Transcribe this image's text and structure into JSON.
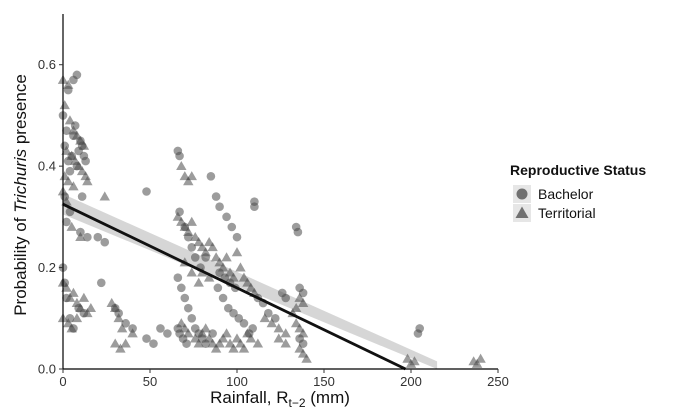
{
  "chart_data": {
    "type": "scatter",
    "xlabel_main": "Rainfall, R",
    "xlabel_sub": "t−2",
    "xlabel_unit": " (mm)",
    "ylabel_pre": "Probability of ",
    "ylabel_italic": "Trichuris",
    "ylabel_post": " presence",
    "xlim": [
      0,
      250
    ],
    "ylim": [
      0,
      0.7
    ],
    "x_ticks": [
      0,
      50,
      100,
      150,
      200,
      250
    ],
    "y_ticks": [
      0.0,
      0.2,
      0.4,
      0.6
    ],
    "y_tick_labels": [
      "0.0",
      "0.2",
      "0.4",
      "0.6"
    ],
    "grid": false,
    "legend": {
      "title": "Reproductive Status",
      "position": "right",
      "entries": [
        {
          "label": "Bachelor",
          "shape": "circle"
        },
        {
          "label": "Territorial",
          "shape": "triangle"
        }
      ]
    },
    "point_color": "#4a4a4a",
    "point_opacity": 0.55,
    "fit_color": "#111111",
    "band_color": "#c8c8c8",
    "fit_line": {
      "x": [
        0,
        215
      ],
      "y": [
        0.325,
        -0.03
      ]
    },
    "confidence_band": {
      "x": [
        0,
        215
      ],
      "lower": [
        0.305,
        -0.075
      ],
      "upper": [
        0.345,
        0.015
      ]
    },
    "series": [
      {
        "name": "Bachelor",
        "marker": "circle",
        "points": [
          [
            0,
            0.5
          ],
          [
            1,
            0.44
          ],
          [
            2,
            0.47
          ],
          [
            3,
            0.41
          ],
          [
            4,
            0.39
          ],
          [
            5,
            0.42
          ],
          [
            6,
            0.46
          ],
          [
            7,
            0.48
          ],
          [
            8,
            0.4
          ],
          [
            9,
            0.43
          ],
          [
            10,
            0.45
          ],
          [
            11,
            0.44
          ],
          [
            12,
            0.42
          ],
          [
            13,
            0.41
          ],
          [
            3,
            0.55
          ],
          [
            6,
            0.57
          ],
          [
            8,
            0.58
          ],
          [
            1,
            0.34
          ],
          [
            4,
            0.31
          ],
          [
            2,
            0.29
          ],
          [
            10,
            0.27
          ],
          [
            14,
            0.26
          ],
          [
            20,
            0.26
          ],
          [
            24,
            0.25
          ],
          [
            11,
            0.34
          ],
          [
            0,
            0.2
          ],
          [
            1,
            0.17
          ],
          [
            2,
            0.14
          ],
          [
            4,
            0.1
          ],
          [
            6,
            0.08
          ],
          [
            9,
            0.12
          ],
          [
            12,
            0.11
          ],
          [
            22,
            0.17
          ],
          [
            48,
            0.35
          ],
          [
            66,
            0.43
          ],
          [
            67,
            0.42
          ],
          [
            67,
            0.31
          ],
          [
            70,
            0.28
          ],
          [
            72,
            0.26
          ],
          [
            74,
            0.24
          ],
          [
            76,
            0.22
          ],
          [
            79,
            0.2
          ],
          [
            82,
            0.22
          ],
          [
            85,
            0.38
          ],
          [
            88,
            0.34
          ],
          [
            90,
            0.32
          ],
          [
            94,
            0.3
          ],
          [
            97,
            0.28
          ],
          [
            100,
            0.26
          ],
          [
            66,
            0.18
          ],
          [
            68,
            0.16
          ],
          [
            70,
            0.14
          ],
          [
            72,
            0.12
          ],
          [
            74,
            0.1
          ],
          [
            76,
            0.08
          ],
          [
            78,
            0.07
          ],
          [
            80,
            0.06
          ],
          [
            82,
            0.05
          ],
          [
            86,
            0.07
          ],
          [
            89,
            0.16
          ],
          [
            92,
            0.14
          ],
          [
            95,
            0.12
          ],
          [
            98,
            0.11
          ],
          [
            101,
            0.1
          ],
          [
            104,
            0.09
          ],
          [
            107,
            0.07
          ],
          [
            109,
            0.08
          ],
          [
            66,
            0.08
          ],
          [
            67,
            0.07
          ],
          [
            69,
            0.06
          ],
          [
            71,
            0.05
          ],
          [
            90,
            0.19
          ],
          [
            93,
            0.18
          ],
          [
            96,
            0.17
          ],
          [
            99,
            0.16
          ],
          [
            110,
            0.33
          ],
          [
            110,
            0.32
          ],
          [
            112,
            0.14
          ],
          [
            115,
            0.13
          ],
          [
            118,
            0.11
          ],
          [
            122,
            0.1
          ],
          [
            126,
            0.15
          ],
          [
            128,
            0.14
          ],
          [
            134,
            0.28
          ],
          [
            135,
            0.27
          ],
          [
            136,
            0.16
          ],
          [
            138,
            0.15
          ],
          [
            136,
            0.06
          ],
          [
            138,
            0.05
          ],
          [
            48,
            0.06
          ],
          [
            52,
            0.05
          ],
          [
            56,
            0.08
          ],
          [
            60,
            0.07
          ],
          [
            30,
            0.12
          ],
          [
            32,
            0.11
          ],
          [
            36,
            0.09
          ],
          [
            40,
            0.08
          ],
          [
            204,
            0.07
          ],
          [
            205,
            0.08
          ]
        ]
      },
      {
        "name": "Territorial",
        "marker": "triangle",
        "points": [
          [
            0,
            0.57
          ],
          [
            3,
            0.56
          ],
          [
            1,
            0.52
          ],
          [
            4,
            0.49
          ],
          [
            6,
            0.47
          ],
          [
            8,
            0.46
          ],
          [
            10,
            0.45
          ],
          [
            12,
            0.44
          ],
          [
            2,
            0.43
          ],
          [
            5,
            0.42
          ],
          [
            7,
            0.41
          ],
          [
            9,
            0.4
          ],
          [
            11,
            0.39
          ],
          [
            13,
            0.38
          ],
          [
            14,
            0.37
          ],
          [
            1,
            0.38
          ],
          [
            3,
            0.37
          ],
          [
            6,
            0.36
          ],
          [
            0,
            0.35
          ],
          [
            2,
            0.33
          ],
          [
            24,
            0.34
          ],
          [
            5,
            0.28
          ],
          [
            10,
            0.26
          ],
          [
            0,
            0.17
          ],
          [
            2,
            0.16
          ],
          [
            4,
            0.14
          ],
          [
            6,
            0.15
          ],
          [
            8,
            0.13
          ],
          [
            10,
            0.12
          ],
          [
            12,
            0.14
          ],
          [
            14,
            0.11
          ],
          [
            16,
            0.12
          ],
          [
            0,
            0.1
          ],
          [
            3,
            0.09
          ],
          [
            5,
            0.08
          ],
          [
            8,
            0.1
          ],
          [
            28,
            0.13
          ],
          [
            30,
            0.12
          ],
          [
            32,
            0.1
          ],
          [
            34,
            0.08
          ],
          [
            30,
            0.05
          ],
          [
            33,
            0.04
          ],
          [
            36,
            0.05
          ],
          [
            40,
            0.07
          ],
          [
            68,
            0.4
          ],
          [
            70,
            0.38
          ],
          [
            72,
            0.37
          ],
          [
            74,
            0.38
          ],
          [
            66,
            0.3
          ],
          [
            68,
            0.29
          ],
          [
            70,
            0.28
          ],
          [
            72,
            0.27
          ],
          [
            74,
            0.29
          ],
          [
            76,
            0.26
          ],
          [
            78,
            0.25
          ],
          [
            80,
            0.24
          ],
          [
            82,
            0.23
          ],
          [
            84,
            0.25
          ],
          [
            86,
            0.24
          ],
          [
            88,
            0.22
          ],
          [
            90,
            0.21
          ],
          [
            92,
            0.2
          ],
          [
            94,
            0.22
          ],
          [
            96,
            0.19
          ],
          [
            98,
            0.18
          ],
          [
            100,
            0.23
          ],
          [
            102,
            0.2
          ],
          [
            104,
            0.18
          ],
          [
            106,
            0.17
          ],
          [
            108,
            0.16
          ],
          [
            110,
            0.15
          ],
          [
            70,
            0.21
          ],
          [
            74,
            0.19
          ],
          [
            78,
            0.17
          ],
          [
            80,
            0.19
          ],
          [
            84,
            0.18
          ],
          [
            68,
            0.09
          ],
          [
            70,
            0.08
          ],
          [
            72,
            0.07
          ],
          [
            76,
            0.06
          ],
          [
            78,
            0.05
          ],
          [
            80,
            0.07
          ],
          [
            82,
            0.08
          ],
          [
            84,
            0.06
          ],
          [
            86,
            0.05
          ],
          [
            88,
            0.04
          ],
          [
            90,
            0.05
          ],
          [
            92,
            0.06
          ],
          [
            94,
            0.07
          ],
          [
            96,
            0.05
          ],
          [
            98,
            0.04
          ],
          [
            100,
            0.06
          ],
          [
            102,
            0.05
          ],
          [
            104,
            0.04
          ],
          [
            106,
            0.07
          ],
          [
            108,
            0.06
          ],
          [
            112,
            0.05
          ],
          [
            116,
            0.1
          ],
          [
            120,
            0.09
          ],
          [
            124,
            0.08
          ],
          [
            128,
            0.07
          ],
          [
            132,
            0.11
          ],
          [
            134,
            0.12
          ],
          [
            136,
            0.14
          ],
          [
            138,
            0.13
          ],
          [
            134,
            0.09
          ],
          [
            136,
            0.08
          ],
          [
            138,
            0.07
          ],
          [
            136,
            0.04
          ],
          [
            138,
            0.03
          ],
          [
            140,
            0.02
          ],
          [
            124,
            0.06
          ],
          [
            128,
            0.05
          ],
          [
            198,
            0.02
          ],
          [
            200,
            0.01
          ],
          [
            202,
            0.015
          ],
          [
            236,
            0.015
          ],
          [
            238,
            0.01
          ],
          [
            240,
            0.02
          ]
        ]
      }
    ]
  }
}
